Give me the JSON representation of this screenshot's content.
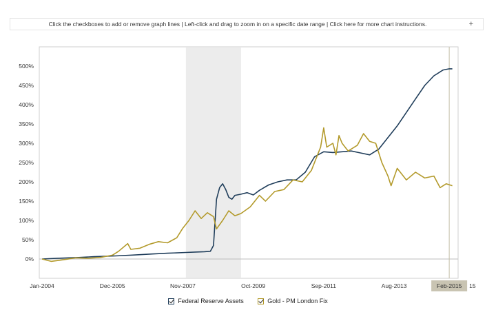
{
  "toolbar": {
    "instructions": "Click the checkboxes to add or remove graph lines  |  Left-click and drag to zoom in on a specific date range  |  Click here for more chart instructions.",
    "expand_symbol": "+"
  },
  "chart_data": {
    "type": "line",
    "title": "",
    "xlabel": "",
    "ylabel": "",
    "ylim": [
      -50,
      550
    ],
    "yticks": [
      0,
      50,
      100,
      150,
      200,
      250,
      300,
      350,
      400,
      450,
      500
    ],
    "ytick_suffix": "%",
    "xlim": [
      "2004-01",
      "2015-04"
    ],
    "xticks": [
      {
        "date": "2004-01",
        "label": "Jan-2004"
      },
      {
        "date": "2005-12",
        "label": "Dec-2005"
      },
      {
        "date": "2007-11",
        "label": "Nov-2007"
      },
      {
        "date": "2009-10",
        "label": "Oct-2009"
      },
      {
        "date": "2011-09",
        "label": "Sep-2011"
      },
      {
        "date": "2013-08",
        "label": "Aug-2013"
      }
    ],
    "cursor_label": "Feb-2015",
    "cursor_date": "2015-02",
    "cursor_trailing_text": "15",
    "shaded_range": [
      "2007-12",
      "2009-06"
    ],
    "grid": false,
    "legend_position": "bottom",
    "series": [
      {
        "name": "Federal Reserve Assets",
        "color": "#1f3d5a",
        "points": [
          [
            "2004-01",
            0
          ],
          [
            "2004-06",
            2
          ],
          [
            "2005-01",
            4
          ],
          [
            "2005-06",
            6
          ],
          [
            "2006-01",
            8
          ],
          [
            "2006-06",
            10
          ],
          [
            "2007-01",
            13
          ],
          [
            "2007-06",
            15
          ],
          [
            "2007-12",
            17
          ],
          [
            "2008-03",
            18
          ],
          [
            "2008-06",
            19
          ],
          [
            "2008-08",
            20
          ],
          [
            "2008-09",
            35
          ],
          [
            "2008-10",
            155
          ],
          [
            "2008-11",
            185
          ],
          [
            "2008-12",
            195
          ],
          [
            "2009-01",
            180
          ],
          [
            "2009-02",
            160
          ],
          [
            "2009-03",
            155
          ],
          [
            "2009-04",
            165
          ],
          [
            "2009-06",
            168
          ],
          [
            "2009-08",
            172
          ],
          [
            "2009-10",
            166
          ],
          [
            "2009-12",
            178
          ],
          [
            "2010-03",
            192
          ],
          [
            "2010-06",
            200
          ],
          [
            "2010-09",
            205
          ],
          [
            "2010-12",
            205
          ],
          [
            "2011-03",
            225
          ],
          [
            "2011-06",
            265
          ],
          [
            "2011-09",
            278
          ],
          [
            "2011-12",
            276
          ],
          [
            "2012-03",
            278
          ],
          [
            "2012-06",
            280
          ],
          [
            "2012-09",
            275
          ],
          [
            "2012-12",
            270
          ],
          [
            "2013-03",
            285
          ],
          [
            "2013-06",
            315
          ],
          [
            "2013-09",
            345
          ],
          [
            "2013-12",
            380
          ],
          [
            "2014-03",
            415
          ],
          [
            "2014-06",
            450
          ],
          [
            "2014-09",
            475
          ],
          [
            "2014-12",
            490
          ],
          [
            "2015-02",
            493
          ],
          [
            "2015-03",
            493
          ]
        ]
      },
      {
        "name": "Gold - PM London Fix",
        "color": "#b39a2b",
        "points": [
          [
            "2004-01",
            0
          ],
          [
            "2004-04",
            -6
          ],
          [
            "2004-08",
            -2
          ],
          [
            "2004-12",
            3
          ],
          [
            "2005-04",
            2
          ],
          [
            "2005-08",
            4
          ],
          [
            "2005-12",
            10
          ],
          [
            "2006-02",
            20
          ],
          [
            "2006-05",
            40
          ],
          [
            "2006-06",
            25
          ],
          [
            "2006-09",
            28
          ],
          [
            "2006-12",
            38
          ],
          [
            "2007-03",
            45
          ],
          [
            "2007-06",
            42
          ],
          [
            "2007-09",
            55
          ],
          [
            "2007-11",
            80
          ],
          [
            "2008-01",
            100
          ],
          [
            "2008-03",
            125
          ],
          [
            "2008-05",
            105
          ],
          [
            "2008-07",
            120
          ],
          [
            "2008-09",
            110
          ],
          [
            "2008-10",
            78
          ],
          [
            "2008-12",
            100
          ],
          [
            "2009-02",
            125
          ],
          [
            "2009-04",
            112
          ],
          [
            "2009-06",
            118
          ],
          [
            "2009-09",
            135
          ],
          [
            "2009-12",
            165
          ],
          [
            "2010-02",
            150
          ],
          [
            "2010-05",
            175
          ],
          [
            "2010-08",
            180
          ],
          [
            "2010-11",
            205
          ],
          [
            "2011-02",
            200
          ],
          [
            "2011-05",
            230
          ],
          [
            "2011-08",
            290
          ],
          [
            "2011-09",
            340
          ],
          [
            "2011-10",
            290
          ],
          [
            "2011-12",
            300
          ],
          [
            "2012-01",
            270
          ],
          [
            "2012-02",
            320
          ],
          [
            "2012-03",
            300
          ],
          [
            "2012-05",
            280
          ],
          [
            "2012-08",
            295
          ],
          [
            "2012-10",
            325
          ],
          [
            "2012-12",
            305
          ],
          [
            "2013-02",
            300
          ],
          [
            "2013-04",
            250
          ],
          [
            "2013-06",
            215
          ],
          [
            "2013-07",
            190
          ],
          [
            "2013-09",
            235
          ],
          [
            "2013-12",
            205
          ],
          [
            "2014-03",
            225
          ],
          [
            "2014-06",
            210
          ],
          [
            "2014-09",
            215
          ],
          [
            "2014-11",
            185
          ],
          [
            "2015-01",
            195
          ],
          [
            "2015-03",
            190
          ]
        ]
      }
    ]
  }
}
